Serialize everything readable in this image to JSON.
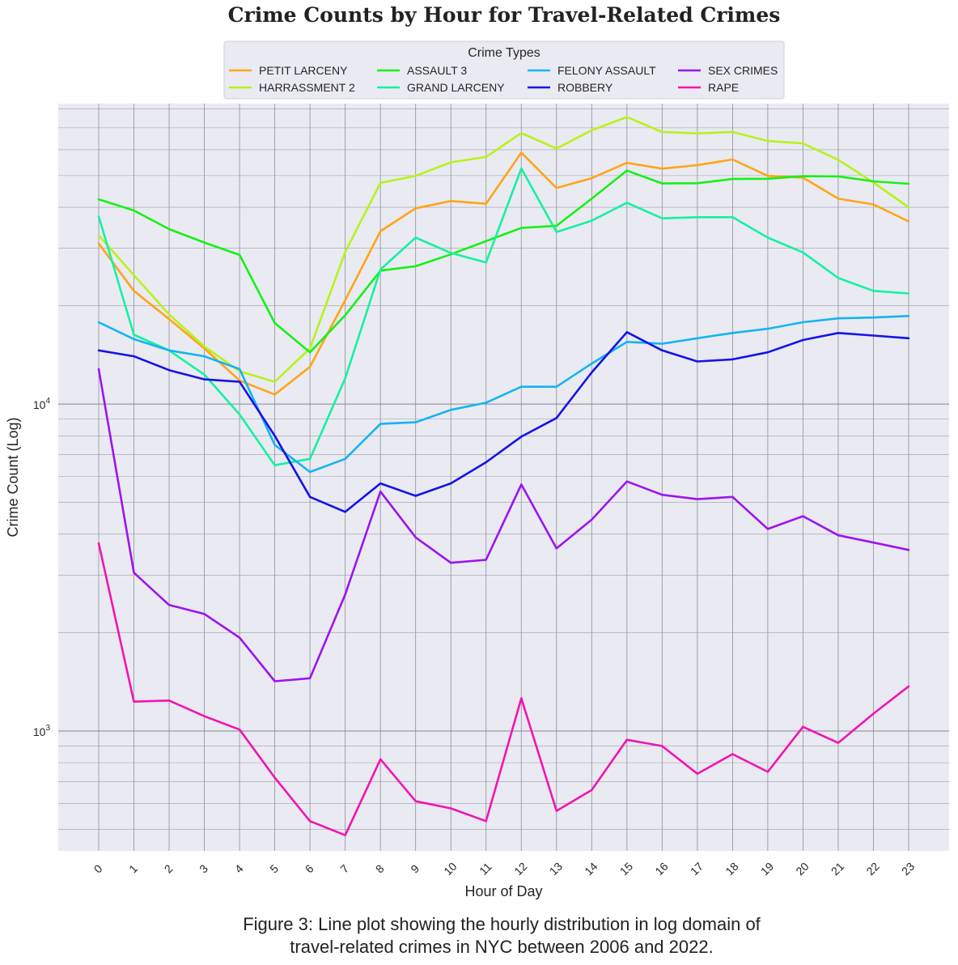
{
  "figure_caption_line1": "Figure 3: Line plot showing the hourly distribution in log domain of",
  "figure_caption_line2": "travel-related crimes in NYC between 2006 and 2022.",
  "chart_data": {
    "type": "line",
    "title": "Crime Counts by Hour for Travel-Related Crimes",
    "xlabel": "Hour of Day",
    "ylabel": "Crime Count (Log)",
    "yscale": "log",
    "ylim": [
      430,
      83000
    ],
    "legend_title": "Crime Types",
    "legend_position": "top-center",
    "grid": true,
    "background": "#eaeaf2",
    "y_ticks": [
      {
        "base": "10",
        "exp": "3",
        "value": 1000
      },
      {
        "base": "10",
        "exp": "4",
        "value": 10000
      }
    ],
    "x": [
      "0",
      "1",
      "2",
      "3",
      "4",
      "5",
      "6",
      "7",
      "8",
      "9",
      "10",
      "11",
      "12",
      "13",
      "14",
      "15",
      "16",
      "17",
      "18",
      "19",
      "20",
      "21",
      "22",
      "23"
    ],
    "series": [
      {
        "name": "PETIT LARCENY",
        "color": "#ffa514",
        "values": [
          31000,
          22200,
          18200,
          14800,
          11800,
          10700,
          13000,
          20800,
          33800,
          39700,
          41800,
          41000,
          58800,
          45800,
          49100,
          54700,
          52500,
          53800,
          56000,
          49900,
          49300,
          42500,
          40800,
          36200
        ]
      },
      {
        "name": "HARRASSMENT 2",
        "color": "#b8f21a",
        "values": [
          32800,
          24800,
          18800,
          15000,
          12600,
          11700,
          14800,
          29200,
          47500,
          49900,
          54900,
          57000,
          67500,
          60500,
          68800,
          75500,
          68000,
          67300,
          68000,
          63800,
          62700,
          55900,
          47600,
          40000
        ]
      },
      {
        "name": "ASSAULT 3",
        "color": "#14f214",
        "values": [
          42300,
          39100,
          34300,
          31200,
          28600,
          17700,
          14400,
          18700,
          25600,
          26400,
          28700,
          31500,
          34600,
          35100,
          42500,
          51800,
          47300,
          47400,
          48800,
          48900,
          49800,
          49700,
          48000,
          47200
        ]
      },
      {
        "name": "GRAND LARCENY",
        "color": "#14f2a0",
        "values": [
          37500,
          16300,
          14600,
          12300,
          9300,
          6500,
          6800,
          12000,
          25800,
          32300,
          29000,
          27100,
          52600,
          33600,
          36400,
          41300,
          37000,
          37300,
          37300,
          32300,
          29100,
          24300,
          22200,
          21800
        ]
      },
      {
        "name": "FELONY ASSAULT",
        "color": "#14b4f2",
        "values": [
          17800,
          15800,
          14600,
          14000,
          12800,
          7500,
          6200,
          6800,
          8700,
          8800,
          9600,
          10100,
          11300,
          11300,
          13300,
          15500,
          15300,
          15900,
          16500,
          17000,
          17800,
          18300,
          18400,
          18600
        ]
      },
      {
        "name": "ROBBERY",
        "color": "#1414e6",
        "values": [
          14600,
          14000,
          12700,
          11900,
          11700,
          8000,
          5200,
          4680,
          5720,
          5240,
          5720,
          6640,
          7950,
          9070,
          12500,
          16600,
          14600,
          13500,
          13700,
          14400,
          15700,
          16500,
          16200,
          15900
        ]
      },
      {
        "name": "SEX CRIMES",
        "color": "#9c14f2",
        "values": [
          12800,
          3050,
          2430,
          2280,
          1930,
          1420,
          1450,
          2620,
          5400,
          3910,
          3270,
          3340,
          5680,
          3620,
          4430,
          5800,
          5280,
          5120,
          5200,
          4150,
          4540,
          3970,
          3770,
          3580
        ]
      },
      {
        "name": "RAPE",
        "color": "#f214b4",
        "values": [
          3750,
          1230,
          1240,
          1110,
          1010,
          720,
          530,
          480,
          820,
          610,
          580,
          530,
          1260,
          570,
          660,
          940,
          900,
          740,
          850,
          750,
          1030,
          920,
          1130,
          1370
        ]
      }
    ]
  }
}
